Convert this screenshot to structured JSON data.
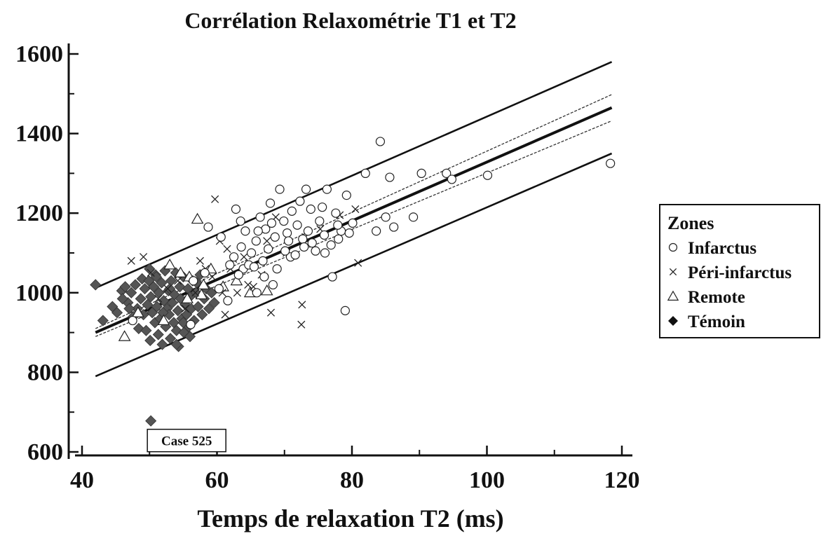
{
  "chart_data": {
    "type": "scatter",
    "title": "Corrélation Relaxométrie T1 et T2",
    "xlabel": "Temps de relaxation T2 (ms)",
    "ylabel": "",
    "xlim": [
      40,
      120
    ],
    "ylim": [
      600,
      1600
    ],
    "x_ticks": [
      40,
      60,
      80,
      100,
      120
    ],
    "y_ticks": [
      600,
      800,
      1000,
      1200,
      1400,
      1600
    ],
    "legend": {
      "title": "Zones",
      "placement": "right",
      "entries": [
        {
          "name": "Infarctus",
          "marker": "circle"
        },
        {
          "name": "Péri-infarctus",
          "marker": "cross"
        },
        {
          "name": "Remote",
          "marker": "triangle"
        },
        {
          "name": "Témoin",
          "marker": "diamond"
        }
      ]
    },
    "annotations": [
      {
        "text": "Case 525",
        "x": 50.2,
        "y": 678
      }
    ],
    "regression": {
      "fit": {
        "x": [
          42,
          118.5
        ],
        "y": [
          900,
          1465
        ]
      },
      "confidence_upper": {
        "x": [
          42,
          118.5
        ],
        "y": [
          910,
          1498
        ]
      },
      "confidence_lower": {
        "x": [
          42,
          118.5
        ],
        "y": [
          890,
          1432
        ]
      },
      "prediction_upper": {
        "x": [
          42,
          118.5
        ],
        "y": [
          1012,
          1580
        ]
      },
      "prediction_lower": {
        "x": [
          42,
          118.5
        ],
        "y": [
          790,
          1350
        ]
      }
    },
    "series": [
      {
        "name": "Infarctus",
        "marker": "circle",
        "points": [
          [
            58.7,
            1165
          ],
          [
            62.8,
            1210
          ],
          [
            63.5,
            1180
          ],
          [
            64.2,
            1155
          ],
          [
            65.1,
            1100
          ],
          [
            65.8,
            1130
          ],
          [
            66.4,
            1190
          ],
          [
            67.2,
            1160
          ],
          [
            67.9,
            1225
          ],
          [
            68.6,
            1140
          ],
          [
            69.3,
            1260
          ],
          [
            69.9,
            1180
          ],
          [
            70.4,
            1150
          ],
          [
            71.1,
            1205
          ],
          [
            71.9,
            1170
          ],
          [
            72.7,
            1135
          ],
          [
            73.2,
            1260
          ],
          [
            73.9,
            1210
          ],
          [
            74.6,
            1105
          ],
          [
            75.2,
            1180
          ],
          [
            75.9,
            1145
          ],
          [
            76.3,
            1260
          ],
          [
            76.9,
            1120
          ],
          [
            77.6,
            1200
          ],
          [
            78.4,
            1155
          ],
          [
            79.2,
            1245
          ],
          [
            80.1,
            1175
          ],
          [
            82.0,
            1300
          ],
          [
            83.6,
            1155
          ],
          [
            84.2,
            1380
          ],
          [
            85.0,
            1190
          ],
          [
            85.6,
            1290
          ],
          [
            86.2,
            1165
          ],
          [
            89.1,
            1190
          ],
          [
            90.3,
            1300
          ],
          [
            94.0,
            1300
          ],
          [
            94.8,
            1285
          ],
          [
            100.1,
            1295
          ],
          [
            118.3,
            1325
          ],
          [
            79.0,
            955
          ],
          [
            77.1,
            1040
          ],
          [
            68.3,
            1020
          ],
          [
            65.9,
            1000
          ],
          [
            61.6,
            980
          ],
          [
            60.3,
            1010
          ],
          [
            62.5,
            1090
          ],
          [
            63.9,
            1060
          ],
          [
            64.7,
            1070
          ],
          [
            66.8,
            1080
          ],
          [
            67.6,
            1110
          ],
          [
            70.9,
            1090
          ],
          [
            71.6,
            1095
          ],
          [
            72.9,
            1115
          ],
          [
            74.1,
            1125
          ],
          [
            76.0,
            1100
          ],
          [
            78.0,
            1135
          ],
          [
            79.6,
            1150
          ],
          [
            63.2,
            1045
          ],
          [
            65.5,
            1065
          ],
          [
            67.0,
            1040
          ],
          [
            68.9,
            1060
          ],
          [
            70.1,
            1105
          ],
          [
            72.3,
            1230
          ],
          [
            58.2,
            1050
          ],
          [
            56.5,
            1030
          ],
          [
            60.6,
            1140
          ],
          [
            61.9,
            1070
          ],
          [
            63.6,
            1115
          ],
          [
            66.1,
            1155
          ],
          [
            68.1,
            1175
          ],
          [
            70.6,
            1130
          ],
          [
            73.5,
            1155
          ],
          [
            75.6,
            1215
          ],
          [
            77.9,
            1170
          ],
          [
            47.5,
            930
          ],
          [
            56.1,
            920
          ]
        ]
      },
      {
        "name": "Péri-infarctus",
        "marker": "cross",
        "points": [
          [
            47.3,
            1080
          ],
          [
            49.1,
            1090
          ],
          [
            59.7,
            1235
          ],
          [
            60.4,
            1130
          ],
          [
            61.5,
            1110
          ],
          [
            62.4,
            1085
          ],
          [
            63.0,
            1000
          ],
          [
            64.6,
            1020
          ],
          [
            57.5,
            1080
          ],
          [
            58.3,
            1060
          ],
          [
            59.3,
            1040
          ],
          [
            60.8,
            1000
          ],
          [
            61.2,
            945
          ],
          [
            65.4,
            1015
          ],
          [
            67.4,
            1130
          ],
          [
            68.0,
            950
          ],
          [
            68.7,
            1190
          ],
          [
            72.6,
            970
          ],
          [
            72.5,
            920
          ],
          [
            80.9,
            1075
          ],
          [
            78.2,
            1195
          ],
          [
            80.5,
            1210
          ],
          [
            75.3,
            1160
          ],
          [
            73.1,
            1140
          ],
          [
            62.0,
            1060
          ],
          [
            64.0,
            1090
          ],
          [
            66.6,
            1045
          ],
          [
            70.3,
            1100
          ],
          [
            56.8,
            1000
          ],
          [
            55.3,
            960
          ],
          [
            54.2,
            1030
          ],
          [
            52.7,
            1010
          ],
          [
            51.3,
            985
          ],
          [
            50.2,
            1050
          ]
        ]
      },
      {
        "name": "Remote",
        "marker": "triangle",
        "points": [
          [
            57.1,
            1185
          ],
          [
            46.3,
            890
          ],
          [
            53.0,
            1070
          ],
          [
            54.6,
            1050
          ],
          [
            55.9,
            1040
          ],
          [
            58.0,
            1020
          ],
          [
            59.1,
            1060
          ],
          [
            60.9,
            1015
          ],
          [
            62.9,
            1030
          ],
          [
            64.9,
            1000
          ],
          [
            67.4,
            1005
          ],
          [
            48.3,
            950
          ],
          [
            52.1,
            930
          ],
          [
            55.6,
            985
          ],
          [
            57.7,
            995
          ]
        ]
      },
      {
        "name": "Témoin",
        "marker": "diamond",
        "points": [
          [
            42.0,
            1020
          ],
          [
            43.1,
            930
          ],
          [
            44.5,
            965
          ],
          [
            45.2,
            950
          ],
          [
            45.9,
            1005
          ],
          [
            46.4,
            1015
          ],
          [
            46.8,
            975
          ],
          [
            47.3,
            1000
          ],
          [
            47.6,
            940
          ],
          [
            47.9,
            1020
          ],
          [
            48.2,
            960
          ],
          [
            48.4,
            910
          ],
          [
            48.7,
            985
          ],
          [
            48.9,
            1035
          ],
          [
            49.1,
            945
          ],
          [
            49.3,
            1010
          ],
          [
            49.5,
            905
          ],
          [
            49.7,
            970
          ],
          [
            49.9,
            1030
          ],
          [
            50.1,
            880
          ],
          [
            50.2,
            990
          ],
          [
            50.4,
            950
          ],
          [
            50.6,
            1015
          ],
          [
            50.8,
            925
          ],
          [
            50.9,
            1045
          ],
          [
            51.1,
            965
          ],
          [
            51.3,
            895
          ],
          [
            51.4,
            1000
          ],
          [
            51.6,
            935
          ],
          [
            51.8,
            1025
          ],
          [
            51.9,
            870
          ],
          [
            52.1,
            980
          ],
          [
            52.3,
            1055
          ],
          [
            52.4,
            915
          ],
          [
            52.6,
            960
          ],
          [
            52.8,
            1005
          ],
          [
            52.9,
            945
          ],
          [
            53.1,
            885
          ],
          [
            53.2,
            1030
          ],
          [
            53.4,
            975
          ],
          [
            53.6,
            925
          ],
          [
            53.7,
            995
          ],
          [
            53.9,
            1050
          ],
          [
            54.0,
            905
          ],
          [
            54.2,
            955
          ],
          [
            54.3,
            865
          ],
          [
            54.5,
            1015
          ],
          [
            54.6,
            985
          ],
          [
            54.8,
            935
          ],
          [
            55.0,
            1040
          ],
          [
            55.1,
            900
          ],
          [
            55.3,
            970
          ],
          [
            55.5,
            945
          ],
          [
            55.7,
            1010
          ],
          [
            55.8,
            915
          ],
          [
            56.0,
            990
          ],
          [
            56.2,
            960
          ],
          [
            56.4,
            1030
          ],
          [
            56.6,
            930
          ],
          [
            56.9,
            1000
          ],
          [
            57.2,
            965
          ],
          [
            57.5,
            1045
          ],
          [
            57.8,
            945
          ],
          [
            58.1,
            985
          ],
          [
            58.4,
            1010
          ],
          [
            58.8,
            960
          ],
          [
            59.2,
            1000
          ],
          [
            59.6,
            975
          ],
          [
            46.0,
            985
          ],
          [
            47.0,
            960
          ],
          [
            50.0,
            1060
          ],
          [
            51.0,
            1040
          ],
          [
            52.0,
            950
          ],
          [
            53.0,
            1010
          ],
          [
            54.0,
            870
          ],
          [
            55.0,
            925
          ],
          [
            56.0,
            890
          ],
          [
            57.0,
            1025
          ],
          [
            50.2,
            678
          ]
        ]
      }
    ]
  }
}
